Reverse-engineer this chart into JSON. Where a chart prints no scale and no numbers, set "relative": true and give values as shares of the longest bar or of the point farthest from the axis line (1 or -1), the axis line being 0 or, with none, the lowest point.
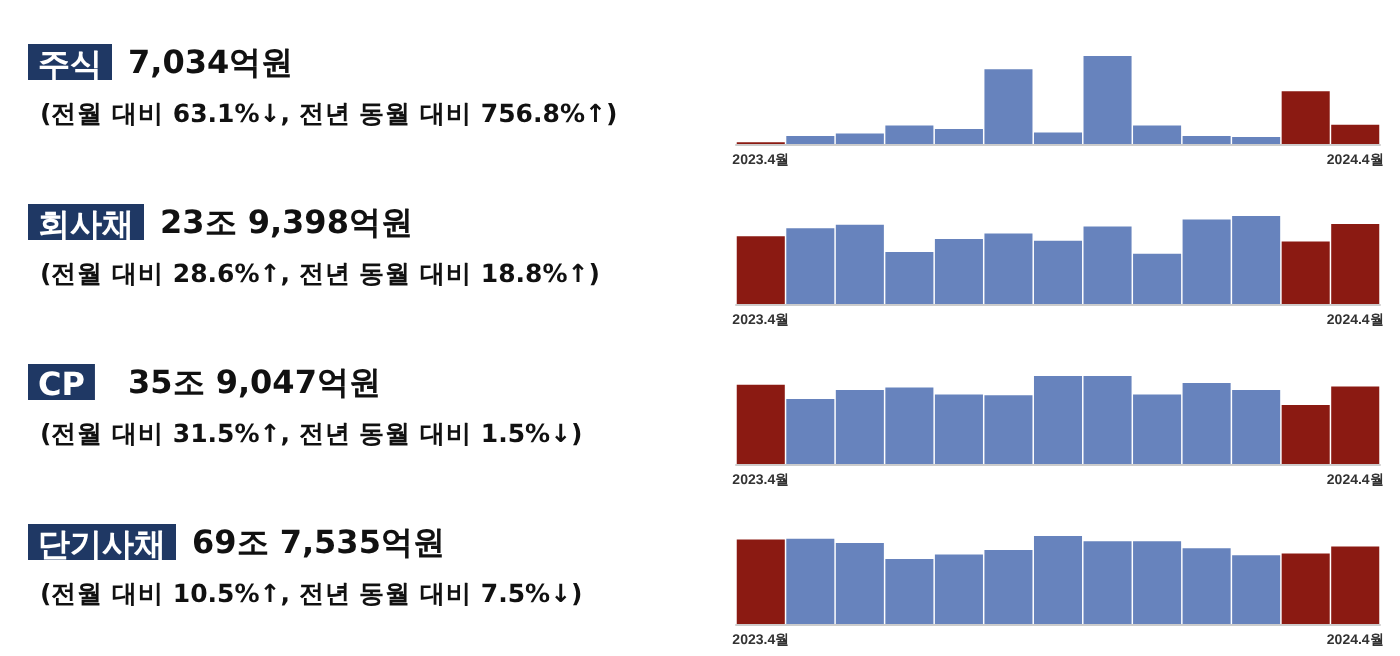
{
  "chart_data": [
    {
      "type": "bar",
      "annotations": [
        "주식",
        "7,034억원",
        "(전월 대비 63.1%↓, 전년 동월 대비 756.8%↑)"
      ],
      "relative": true,
      "categories": [
        "2023.4월",
        null,
        null,
        null,
        null,
        null,
        null,
        null,
        null,
        null,
        null,
        null,
        "2024.4월"
      ],
      "values": [
        0.02,
        0.09,
        0.12,
        0.21,
        0.17,
        0.85,
        0.13,
        1,
        0.21,
        0.09,
        0.08,
        0.6,
        0.22
      ],
      "colors": [
        "#8b1a12",
        "#6783bd",
        "#6783bd",
        "#6783bd",
        "#6783bd",
        "#6783bd",
        "#6783bd",
        "#6783bd",
        "#6783bd",
        "#6783bd",
        "#6783bd",
        "#8b1a12",
        "#8b1a12"
      ]
    },
    {
      "type": "bar",
      "annotations": [
        "회사채",
        "23조 9,398억원",
        "(전월 대비 28.6%↑, 전년 동월 대비 18.8%↑)"
      ],
      "relative": true,
      "categories": [
        "2023.4월",
        null,
        null,
        null,
        null,
        null,
        null,
        null,
        null,
        null,
        null,
        null,
        "2024.4월"
      ],
      "values": [
        0.77,
        0.86,
        0.9,
        0.59,
        0.74,
        0.8,
        0.72,
        0.88,
        0.57,
        0.96,
        1,
        0.71,
        0.91
      ],
      "colors": [
        "#8b1a12",
        "#6783bd",
        "#6783bd",
        "#6783bd",
        "#6783bd",
        "#6783bd",
        "#6783bd",
        "#6783bd",
        "#6783bd",
        "#6783bd",
        "#6783bd",
        "#8b1a12",
        "#8b1a12"
      ]
    },
    {
      "type": "bar",
      "annotations": [
        "CP",
        "35조 9,047억원",
        "(전월 대비 31.5%↑, 전년 동월 대비 1.5%↓)"
      ],
      "relative": true,
      "categories": [
        "2023.4월",
        null,
        null,
        null,
        null,
        null,
        null,
        null,
        null,
        null,
        null,
        null,
        "2024.4월"
      ],
      "values": [
        0.9,
        0.74,
        0.84,
        0.87,
        0.79,
        0.78,
        1,
        1,
        0.79,
        0.92,
        0.84,
        0.67,
        0.88
      ],
      "colors": [
        "#8b1a12",
        "#6783bd",
        "#6783bd",
        "#6783bd",
        "#6783bd",
        "#6783bd",
        "#6783bd",
        "#6783bd",
        "#6783bd",
        "#6783bd",
        "#6783bd",
        "#8b1a12",
        "#8b1a12"
      ]
    },
    {
      "type": "bar",
      "annotations": [
        "단기사채",
        "69조 7,535억원",
        "(전월 대비 10.5%↑, 전년 동월 대비 7.5%↓)"
      ],
      "relative": true,
      "categories": [
        "2023.4월",
        null,
        null,
        null,
        null,
        null,
        null,
        null,
        null,
        null,
        null,
        null,
        "2024.4월"
      ],
      "values": [
        0.96,
        0.97,
        0.92,
        0.74,
        0.79,
        0.84,
        1,
        0.94,
        0.94,
        0.86,
        0.78,
        0.8,
        0.88
      ],
      "colors": [
        "#8b1a12",
        "#6783bd",
        "#6783bd",
        "#6783bd",
        "#6783bd",
        "#6783bd",
        "#6783bd",
        "#6783bd",
        "#6783bd",
        "#6783bd",
        "#6783bd",
        "#8b1a12",
        "#8b1a12"
      ]
    }
  ]
}
